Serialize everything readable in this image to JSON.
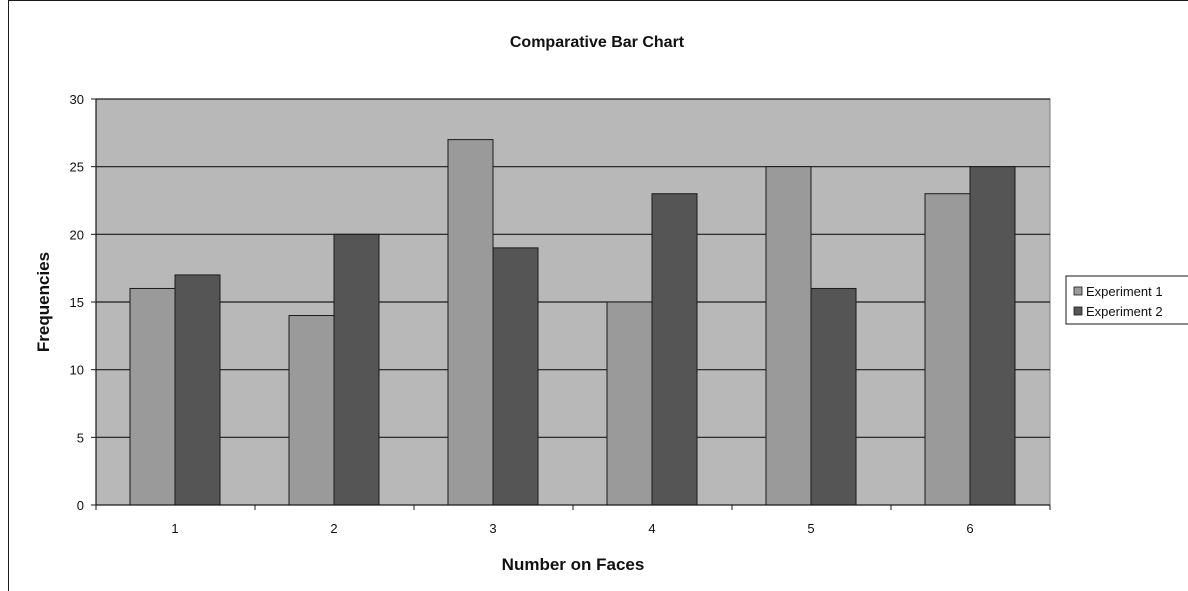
{
  "chart_data": {
    "type": "bar",
    "title": "Comparative Bar Chart",
    "xlabel": "Number on Faces",
    "ylabel": "Frequencies",
    "categories": [
      "1",
      "2",
      "3",
      "4",
      "5",
      "6"
    ],
    "series": [
      {
        "name": "Experiment 1",
        "values": [
          16,
          14,
          27,
          15,
          25,
          23
        ],
        "color": "#9a9a9a"
      },
      {
        "name": "Experiment 2",
        "values": [
          17,
          20,
          19,
          23,
          16,
          25
        ],
        "color": "#555555"
      }
    ],
    "ylim": [
      0,
      30
    ],
    "yticks": [
      "0",
      "5",
      "10",
      "15",
      "20",
      "25",
      "30"
    ],
    "grid": true,
    "plot_background": "#b8b8b8",
    "legend_position": "right"
  }
}
